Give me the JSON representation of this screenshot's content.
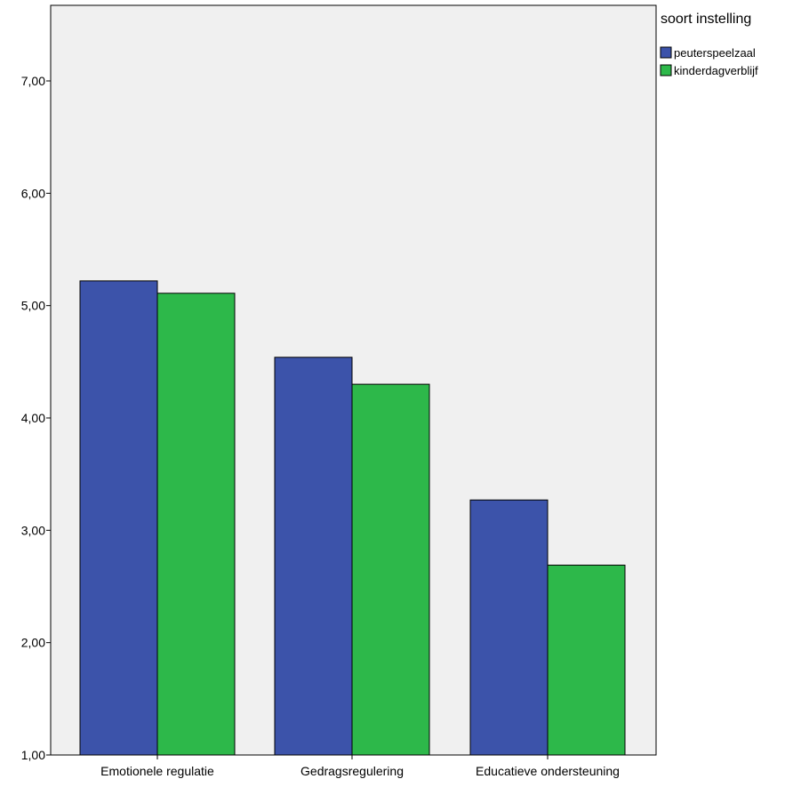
{
  "chart_data": {
    "type": "bar",
    "categories": [
      "Emotionele regulatie",
      "Gedragsregulering",
      "Educatieve ondersteuning"
    ],
    "series": [
      {
        "name": "peuterspeelzaal",
        "values": [
          5.22,
          4.54,
          3.27
        ]
      },
      {
        "name": "kinderdagverblijf",
        "values": [
          5.11,
          4.3,
          2.69
        ]
      }
    ],
    "ylim": [
      1.0,
      7.7
    ],
    "yticks": [
      1,
      2,
      3,
      4,
      5,
      6,
      7
    ],
    "ytick_labels": [
      "1,00",
      "2,00",
      "3,00",
      "4,00",
      "5,00",
      "6,00",
      "7,00"
    ],
    "legend": {
      "title": "soort instelling",
      "placement": "top-right"
    },
    "colors": {
      "series": [
        "#3c53aa",
        "#2db84a"
      ],
      "plot_background": "#f0f0f0",
      "axis": "#000000"
    },
    "grid": false
  }
}
